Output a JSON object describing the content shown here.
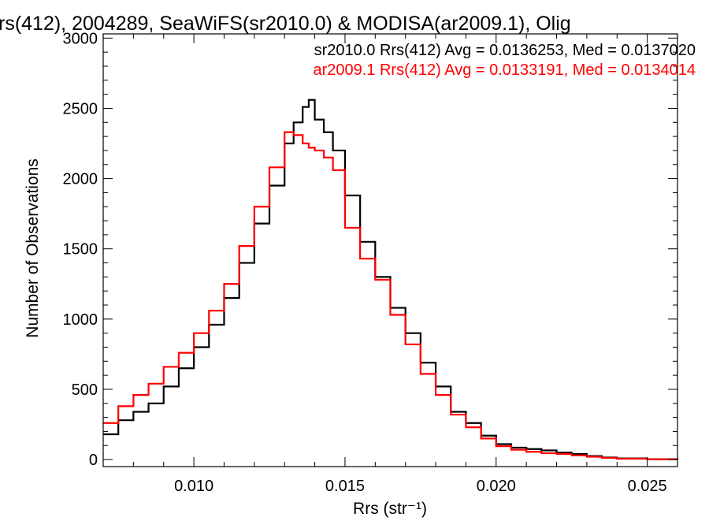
{
  "chart_data": {
    "type": "line",
    "title": "rs(412), 2004289, SeaWiFS(sr2010.0) & MODISA(ar2009.1), Olig",
    "xlabel": "Rrs (str⁻¹)",
    "ylabel": "Number of Observations",
    "xlim": [
      0.007,
      0.026
    ],
    "ylim": [
      -50,
      3030
    ],
    "xticks": [
      0.01,
      0.015,
      0.02,
      0.025
    ],
    "xtick_labels": [
      "0.010",
      "0.015",
      "0.020",
      "0.025"
    ],
    "yticks": [
      0,
      500,
      1000,
      1500,
      2000,
      2500,
      3000
    ],
    "ytick_labels": [
      "0",
      "500",
      "1000",
      "1500",
      "2000",
      "2500",
      "3000"
    ],
    "grid": false,
    "legend_position": "top-right",
    "line_style": "step",
    "series": [
      {
        "name": "sr2010.0 Rrs(412) Avg = 0.0136253, Med = 0.0137020",
        "color": "#000000",
        "x": [
          0.007,
          0.0075,
          0.008,
          0.0085,
          0.009,
          0.0095,
          0.01,
          0.0105,
          0.011,
          0.0115,
          0.012,
          0.0125,
          0.013,
          0.0133,
          0.0136,
          0.0138,
          0.014,
          0.0143,
          0.0146,
          0.015,
          0.0155,
          0.016,
          0.0165,
          0.017,
          0.0175,
          0.018,
          0.0185,
          0.019,
          0.0195,
          0.02,
          0.0205,
          0.021,
          0.0215,
          0.022,
          0.0225,
          0.023,
          0.0235,
          0.024,
          0.025,
          0.026
        ],
        "y": [
          180,
          280,
          340,
          400,
          520,
          650,
          800,
          960,
          1150,
          1400,
          1680,
          1950,
          2250,
          2400,
          2510,
          2560,
          2420,
          2330,
          2200,
          1880,
          1550,
          1300,
          1080,
          900,
          690,
          520,
          340,
          260,
          170,
          110,
          85,
          75,
          65,
          50,
          40,
          25,
          15,
          8,
          3,
          0
        ]
      },
      {
        "name": "ar2009.1 Rrs(412) Avg = 0.0133191, Med = 0.0134014",
        "color": "#ff0000",
        "x": [
          0.007,
          0.0075,
          0.008,
          0.0085,
          0.009,
          0.0095,
          0.01,
          0.0105,
          0.011,
          0.0115,
          0.012,
          0.0125,
          0.013,
          0.0133,
          0.0136,
          0.0138,
          0.014,
          0.0143,
          0.0146,
          0.015,
          0.0155,
          0.016,
          0.0165,
          0.017,
          0.0175,
          0.018,
          0.0185,
          0.019,
          0.0195,
          0.02,
          0.0205,
          0.021,
          0.0215,
          0.022,
          0.0225,
          0.023,
          0.0235,
          0.024,
          0.025,
          0.026
        ],
        "y": [
          260,
          380,
          460,
          540,
          660,
          760,
          900,
          1060,
          1250,
          1520,
          1800,
          2080,
          2330,
          2310,
          2250,
          2220,
          2200,
          2150,
          2060,
          1650,
          1430,
          1280,
          1030,
          820,
          610,
          460,
          320,
          230,
          150,
          95,
          70,
          55,
          45,
          40,
          30,
          20,
          12,
          6,
          2,
          0
        ]
      }
    ]
  }
}
